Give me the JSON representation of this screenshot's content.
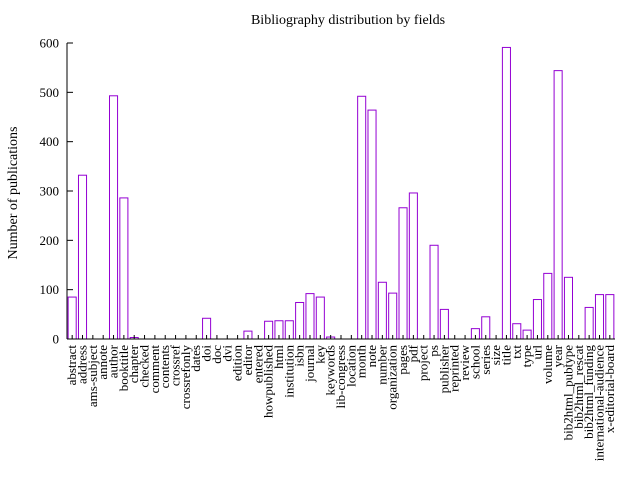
{
  "chart_data": {
    "type": "bar",
    "title": "Bibliography distribution by fields",
    "xlabel": "",
    "ylabel": "Number of publications",
    "ylim": [
      0,
      600
    ],
    "yticks": [
      0,
      100,
      200,
      300,
      400,
      500,
      600
    ],
    "grid": false,
    "bar_color": "#9400d3",
    "categories": [
      "abstract",
      "address",
      "ams-subject",
      "annote",
      "author",
      "booktitle",
      "chapter",
      "checked",
      "comment",
      "contents",
      "crossref",
      "crossrefonly",
      "date",
      "doi",
      "doc",
      "dvi",
      "edition",
      "editor",
      "entered",
      "howpublished",
      "html",
      "institution",
      "isbn",
      "journal",
      "key",
      "keywords",
      "lib-congress",
      "location",
      "month",
      "note",
      "number",
      "organization",
      "pages",
      "pdf",
      "project",
      "ps",
      "publisher",
      "reprinted",
      "review",
      "school",
      "series",
      "size",
      "title",
      "txt",
      "type",
      "url",
      "volume",
      "year",
      "bib2html_pubtype",
      "bib2html_rescat",
      "bib2html_funding",
      "international-audience",
      "x-editorial-board"
    ],
    "labels_shown": [
      "abstract",
      "address",
      "ams-subject",
      "annote",
      "author",
      "booktitle",
      "chapter",
      "checked",
      "comment",
      "contents",
      "crossref",
      "crossrefonly",
      "dates",
      "doi",
      "doc",
      "dvi",
      "edition",
      "editor",
      "entered",
      "howpublished",
      "html",
      "institution",
      "isbn",
      "journal",
      "key",
      "keywords",
      "lib-congress",
      "location",
      "month",
      "note",
      "number",
      "organization",
      "pages",
      "pdf",
      "project",
      "ps",
      "publisher",
      "reprinted",
      "review",
      "school",
      "series",
      "size",
      "title",
      "txt",
      "type",
      "url",
      "volume",
      "year",
      "bib2html_pubtype",
      "bib2html_rescat",
      "bib2html_funding",
      "international-audience",
      "x-editorial-board"
    ],
    "values": [
      85,
      332,
      0,
      0,
      493,
      286,
      3,
      0,
      0,
      0,
      0,
      0,
      0,
      42,
      0,
      0,
      0,
      16,
      0,
      36,
      37,
      37,
      74,
      92,
      85,
      4,
      0,
      0,
      492,
      464,
      115,
      93,
      266,
      296,
      0,
      190,
      60,
      0,
      0,
      21,
      45,
      0,
      591,
      31,
      18,
      80,
      133,
      544,
      125,
      0,
      64,
      90,
      90
    ]
  }
}
